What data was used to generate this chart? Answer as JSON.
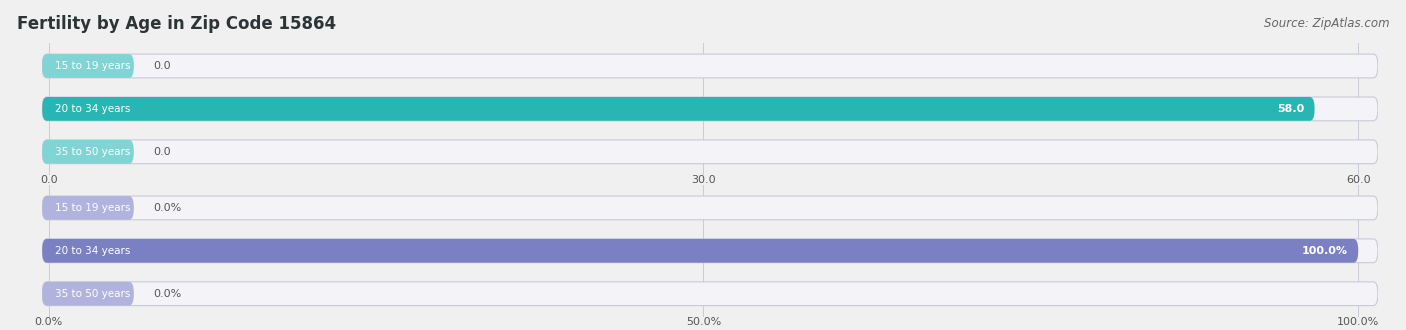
{
  "title": "Fertility by Age in Zip Code 15864",
  "source": "Source: ZipAtlas.com",
  "fig_bg": "#f0f0f0",
  "top_chart": {
    "categories": [
      "15 to 19 years",
      "20 to 34 years",
      "35 to 50 years"
    ],
    "values": [
      0.0,
      58.0,
      0.0
    ],
    "max_value": 60.0,
    "tick_values": [
      0.0,
      30.0,
      60.0
    ],
    "bar_color_full": "#2ab5b5",
    "bar_color_zero": "#80d4d4",
    "row_bg": "#e8eaf0",
    "row_bg_stroke": "#d0d2de"
  },
  "bottom_chart": {
    "categories": [
      "15 to 19 years",
      "20 to 34 years",
      "35 to 50 years"
    ],
    "values": [
      0.0,
      100.0,
      0.0
    ],
    "max_value": 100.0,
    "tick_values": [
      0.0,
      50.0,
      100.0
    ],
    "bar_color_full": "#7b7fc4",
    "bar_color_zero": "#b0b3de",
    "row_bg": "#e8eaf0",
    "row_bg_stroke": "#d0d2de"
  }
}
